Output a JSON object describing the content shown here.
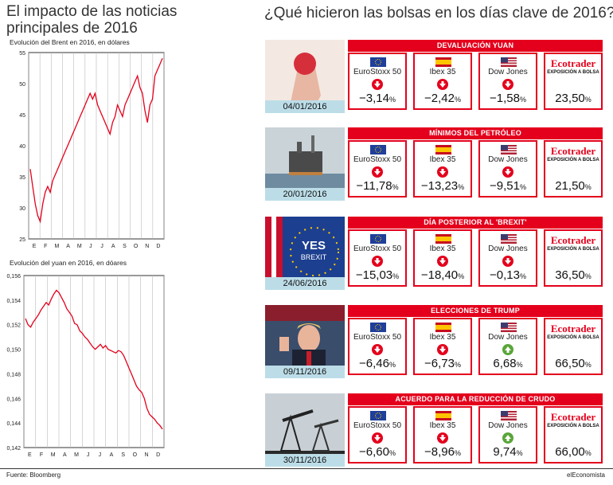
{
  "title_left": "El impacto de las noticias principales de 2016",
  "title_right": "¿Qué hicieron las bolsas en los días clave de 2016?",
  "source": "Fuente: Bloomberg",
  "brand": "elEconomista",
  "colors": {
    "accent": "#e4001c",
    "date_bg": "#bcdde8",
    "up": "#5aa53a",
    "down": "#e4001c"
  },
  "chart_data": [
    {
      "type": "line",
      "title": "Evolución del Brent en 2016, en dólares",
      "yticks": [
        "55",
        "50",
        "45",
        "40",
        "35",
        "30",
        "25"
      ],
      "ylim": [
        25,
        57
      ],
      "months": [
        "E",
        "F",
        "M",
        "A",
        "M",
        "J",
        "J",
        "A",
        "S",
        "O",
        "N",
        "D"
      ],
      "series": [
        {
          "name": "Brent",
          "values": [
            37,
            34,
            31,
            29,
            28,
            31,
            33,
            34,
            33,
            35,
            36,
            37,
            38,
            39,
            40,
            41,
            42,
            43,
            44,
            45,
            46,
            47,
            48,
            49,
            50,
            49,
            50,
            48,
            47,
            46,
            45,
            44,
            43,
            45,
            46,
            48,
            47,
            46,
            48,
            49,
            50,
            51,
            52,
            53,
            51,
            50,
            47,
            45,
            48,
            49,
            53,
            54,
            55,
            56
          ]
        }
      ]
    },
    {
      "type": "line",
      "title": "Evolución del yuan en 2016, en dóares",
      "yticks": [
        "0,156",
        "0,154",
        "0,152",
        "0,150",
        "0,148",
        "0,146",
        "0,144",
        "0,142"
      ],
      "ylim": [
        0.142,
        0.156
      ],
      "months": [
        "E",
        "F",
        "M",
        "A",
        "M",
        "J",
        "J",
        "A",
        "S",
        "O",
        "N",
        "D"
      ],
      "series": [
        {
          "name": "Yuan",
          "values": [
            0.1525,
            0.152,
            0.1518,
            0.1522,
            0.1525,
            0.1528,
            0.1532,
            0.1535,
            0.1538,
            0.1536,
            0.1541,
            0.1545,
            0.1548,
            0.1546,
            0.1542,
            0.1538,
            0.1533,
            0.153,
            0.1527,
            0.1521,
            0.152,
            0.1515,
            0.1513,
            0.151,
            0.1508,
            0.1505,
            0.1502,
            0.15,
            0.1502,
            0.1504,
            0.1501,
            0.1503,
            0.15,
            0.1499,
            0.1498,
            0.1497,
            0.1499,
            0.1498,
            0.1495,
            0.149,
            0.1485,
            0.148,
            0.1475,
            0.147,
            0.1467,
            0.1465,
            0.146,
            0.1452,
            0.1447,
            0.1445,
            0.1443,
            0.144,
            0.1438,
            0.1435
          ]
        }
      ]
    }
  ],
  "index_labels": {
    "euro": "EuroStoxx 50",
    "ibex": "Ibex 35",
    "dow": "Dow Jones",
    "eco": "Ecotrader",
    "eco_sub": "EXPOSICIÓN A BOLSA"
  },
  "events": [
    {
      "title": "DEVALUACIÓN YUAN",
      "date": "04/01/2016",
      "euro": "−3,14",
      "ibex": "−2,42",
      "dow": "−1,58",
      "eco": "23,50",
      "dir": [
        "down",
        "down",
        "down"
      ]
    },
    {
      "title": "MÍNIMOS DEL PETRÓLEO",
      "date": "20/01/2016",
      "euro": "−11,78",
      "ibex": "−13,23",
      "dow": "−9,51",
      "eco": "21,50",
      "dir": [
        "down",
        "down",
        "down"
      ]
    },
    {
      "title": "DÍA POSTERIOR AL 'BREXIT'",
      "date": "24/06/2016",
      "euro": "−15,03",
      "ibex": "−18,40",
      "dow": "−0,13",
      "eco": "36,50",
      "dir": [
        "down",
        "down",
        "down"
      ],
      "photo_text": [
        "YES",
        "BREXIT"
      ]
    },
    {
      "title": "ELECCIONES DE TRUMP",
      "date": "09/11/2016",
      "euro": "−6,46",
      "ibex": "−6,73",
      "dow": "6,68",
      "eco": "66,50",
      "dir": [
        "down",
        "down",
        "up"
      ]
    },
    {
      "title": "ACUERDO PARA LA REDUCCIÓN DE CRUDO",
      "date": "30/11/2016",
      "euro": "−6,60",
      "ibex": "−8,96",
      "dow": "9,74",
      "eco": "66,00",
      "dir": [
        "down",
        "down",
        "up"
      ]
    }
  ],
  "pct": "%"
}
